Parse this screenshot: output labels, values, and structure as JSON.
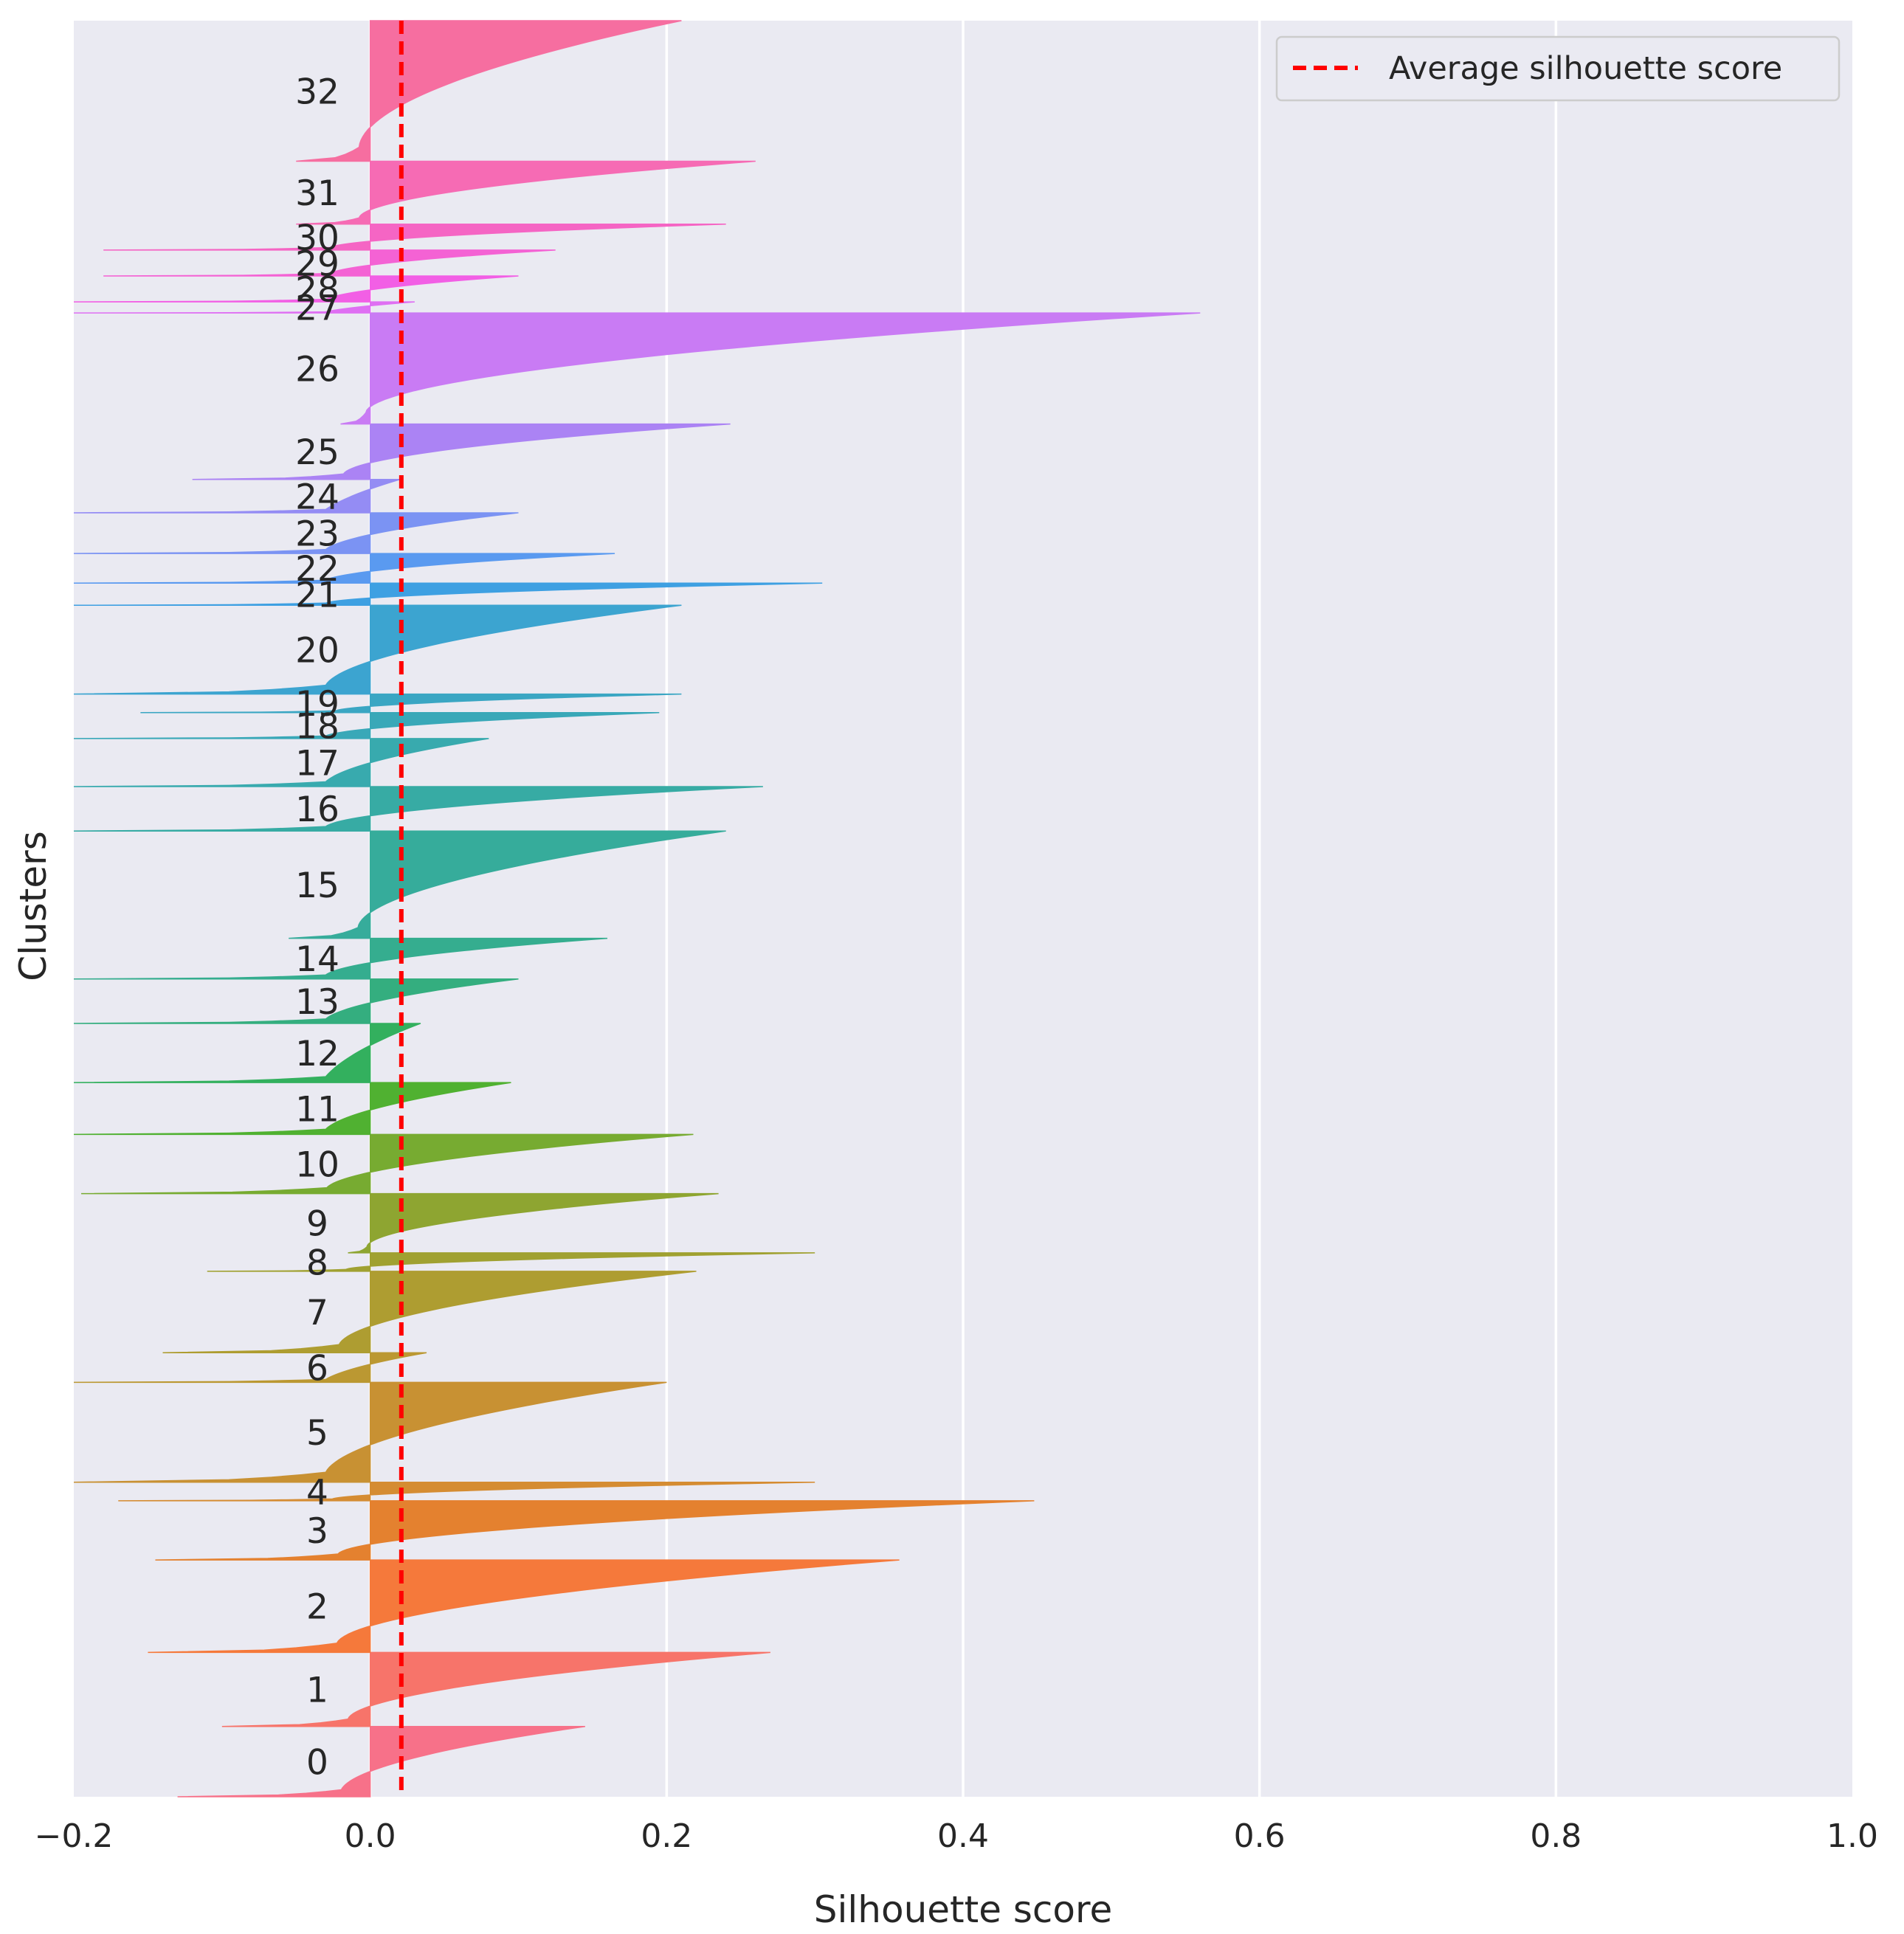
{
  "chart_data": {
    "type": "silhouette",
    "xlabel": "Silhouette score",
    "ylabel": "Clusters",
    "xlim": [
      -0.2,
      1.0
    ],
    "xticks": [
      -0.2,
      0.0,
      0.2,
      0.4,
      0.6,
      0.8,
      1.0
    ],
    "xtick_labels": [
      "−0.2",
      "0.0",
      "0.2",
      "0.4",
      "0.6",
      "0.8",
      "1.0"
    ],
    "grid": true,
    "average_silhouette_score": 0.021,
    "legend": {
      "label": "Average silhouette score",
      "placement": "top-right"
    },
    "colors": {
      "background": "#eaeaf2",
      "grid": "#ffffff",
      "average_line": "#ff0000",
      "legend_border": "#cccccc"
    },
    "total_samples": 2400,
    "clusters": [
      {
        "id": "0",
        "label": "0",
        "start": 0,
        "size": 95,
        "max": 0.145,
        "min": -0.13,
        "color": "#f77189"
      },
      {
        "id": "1",
        "label": "1",
        "start": 95,
        "size": 100,
        "max": 0.27,
        "min": -0.1,
        "color": "#f7746a"
      },
      {
        "id": "2",
        "label": "2",
        "start": 195,
        "size": 125,
        "max": 0.357,
        "min": -0.15,
        "color": "#f5793b"
      },
      {
        "id": "3",
        "label": "3",
        "start": 320,
        "size": 80,
        "max": 0.448,
        "min": -0.145,
        "color": "#e4812f"
      },
      {
        "id": "4",
        "label": "4",
        "start": 400,
        "size": 25,
        "max": 0.3,
        "min": -0.17,
        "color": "#d58c32"
      },
      {
        "id": "5",
        "label": "5",
        "start": 425,
        "size": 135,
        "max": 0.2,
        "min": -0.2,
        "color": "#c89133"
      },
      {
        "id": "6",
        "label": "6",
        "start": 560,
        "size": 40,
        "max": 0.038,
        "min": -0.2,
        "color": "#bb9832"
      },
      {
        "id": "7",
        "label": "7",
        "start": 600,
        "size": 110,
        "max": 0.22,
        "min": -0.14,
        "color": "#ae9d31"
      },
      {
        "id": "8",
        "label": "8",
        "start": 710,
        "size": 25,
        "max": 0.3,
        "min": -0.11,
        "color": "#a0a131"
      },
      {
        "id": "9",
        "label": "9",
        "start": 735,
        "size": 80,
        "max": 0.235,
        "min": -0.015,
        "color": "#8ea531"
      },
      {
        "id": "10",
        "label": "10",
        "start": 815,
        "size": 80,
        "max": 0.218,
        "min": -0.195,
        "color": "#77ab31"
      },
      {
        "id": "11",
        "label": "11",
        "start": 895,
        "size": 70,
        "max": 0.095,
        "min": -0.2,
        "color": "#50b131"
      },
      {
        "id": "12",
        "label": "12",
        "start": 965,
        "size": 80,
        "max": 0.034,
        "min": -0.2,
        "color": "#33b05e"
      },
      {
        "id": "13",
        "label": "13",
        "start": 1045,
        "size": 60,
        "max": 0.1,
        "min": -0.2,
        "color": "#34ae7f"
      },
      {
        "id": "14",
        "label": "14",
        "start": 1105,
        "size": 55,
        "max": 0.16,
        "min": -0.2,
        "color": "#35ad8f"
      },
      {
        "id": "15",
        "label": "15",
        "start": 1160,
        "size": 145,
        "max": 0.24,
        "min": -0.055,
        "color": "#36ac9b"
      },
      {
        "id": "16",
        "label": "16",
        "start": 1305,
        "size": 60,
        "max": 0.265,
        "min": -0.2,
        "color": "#37aba4"
      },
      {
        "id": "17",
        "label": "17",
        "start": 1365,
        "size": 65,
        "max": 0.08,
        "min": -0.2,
        "color": "#38aaae"
      },
      {
        "id": "18",
        "label": "18",
        "start": 1430,
        "size": 35,
        "max": 0.195,
        "min": -0.2,
        "color": "#39a8b8"
      },
      {
        "id": "19",
        "label": "19",
        "start": 1465,
        "size": 25,
        "max": 0.21,
        "min": -0.155,
        "color": "#3aa6c3"
      },
      {
        "id": "20",
        "label": "20",
        "start": 1490,
        "size": 120,
        "max": 0.21,
        "min": -0.2,
        "color": "#3ca4d0"
      },
      {
        "id": "21",
        "label": "21",
        "start": 1610,
        "size": 30,
        "max": 0.305,
        "min": -0.2,
        "color": "#3ea0e2"
      },
      {
        "id": "22",
        "label": "22",
        "start": 1640,
        "size": 40,
        "max": 0.165,
        "min": -0.2,
        "color": "#5a9af0"
      },
      {
        "id": "23",
        "label": "23",
        "start": 1680,
        "size": 55,
        "max": 0.1,
        "min": -0.2,
        "color": "#7b93f3"
      },
      {
        "id": "24",
        "label": "24",
        "start": 1735,
        "size": 45,
        "max": 0.02,
        "min": -0.2,
        "color": "#948cf4"
      },
      {
        "id": "25",
        "label": "25",
        "start": 1780,
        "size": 75,
        "max": 0.243,
        "min": -0.12,
        "color": "#ab83f4"
      },
      {
        "id": "26",
        "label": "26",
        "start": 1855,
        "size": 150,
        "max": 0.56,
        "min": -0.02,
        "color": "#c97bf4"
      },
      {
        "id": "27",
        "label": "27",
        "start": 2005,
        "size": 15,
        "max": 0.03,
        "min": -0.2,
        "color": "#df6ff3"
      },
      {
        "id": "28",
        "label": "28",
        "start": 2020,
        "size": 35,
        "max": 0.1,
        "min": -0.2,
        "color": "#f25fe5"
      },
      {
        "id": "29",
        "label": "29",
        "start": 2055,
        "size": 35,
        "max": 0.125,
        "min": -0.18,
        "color": "#f462d4"
      },
      {
        "id": "30",
        "label": "30",
        "start": 2090,
        "size": 35,
        "max": 0.24,
        "min": -0.18,
        "color": "#f565c4"
      },
      {
        "id": "31",
        "label": "31",
        "start": 2125,
        "size": 85,
        "max": 0.26,
        "min": -0.05,
        "color": "#f66bb4"
      },
      {
        "id": "32",
        "label": "32",
        "start": 2210,
        "size": 190,
        "max": 0.21,
        "min": -0.05,
        "color": "#f66ea0"
      }
    ]
  }
}
